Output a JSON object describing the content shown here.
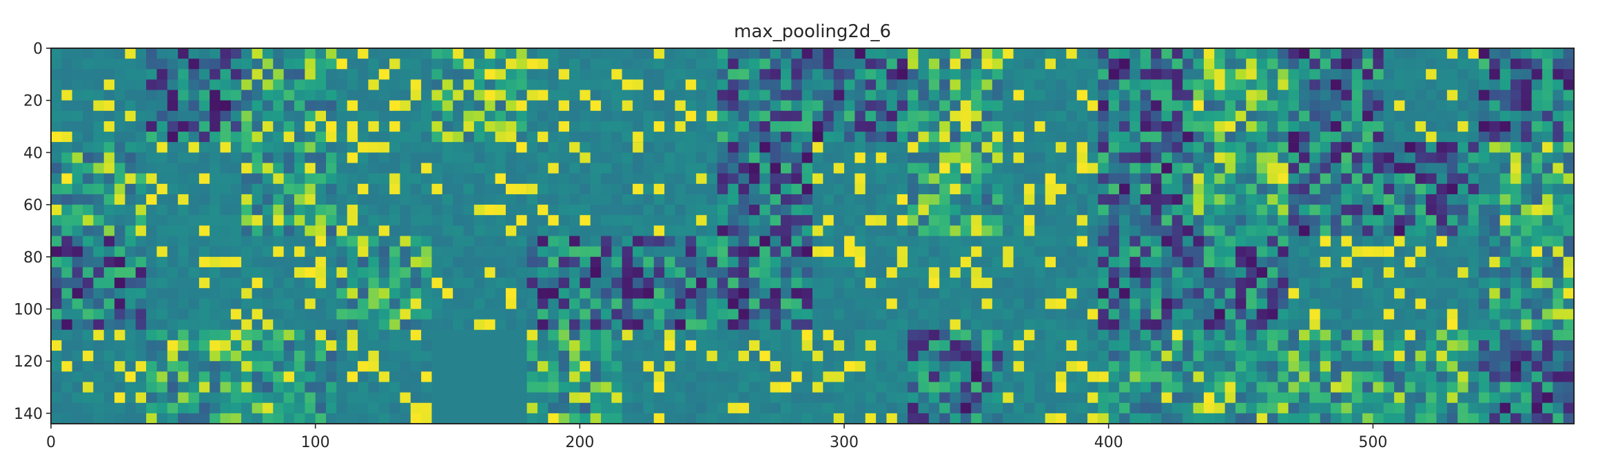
{
  "chart_data": {
    "type": "heatmap",
    "title": "max_pooling2d_6",
    "xlabel": "",
    "ylabel": "",
    "colormap": "viridis",
    "grid": false,
    "x_range": [
      0,
      576
    ],
    "y_range": [
      0,
      144
    ],
    "y_axis_inverted": true,
    "x_ticks": [
      0,
      100,
      200,
      300,
      400,
      500
    ],
    "x_tick_labels": [
      "0",
      "100",
      "200",
      "300",
      "400",
      "500"
    ],
    "y_ticks": [
      0,
      20,
      40,
      60,
      80,
      100,
      120,
      140
    ],
    "y_tick_labels": [
      "0",
      "20",
      "40",
      "60",
      "80",
      "100",
      "120",
      "140"
    ],
    "grid_layout": {
      "rows": 4,
      "cols": 16,
      "tile_size": 36,
      "tiles_shown": 64
    },
    "tile_style": "mean",
    "tile_styles": [
      "sparse",
      "dark",
      "mid",
      "sparse",
      "bright",
      "sparse",
      "sparse",
      "dark",
      "dark",
      "mid",
      "sparse",
      "dark",
      "mid",
      "dark",
      "sparse",
      "dark",
      "mid",
      "sparse",
      "mid",
      "sparse",
      "sparse",
      "sparse",
      "sparse",
      "dark",
      "sparse",
      "mid",
      "sparse",
      "dark",
      "mid",
      "dark",
      "dark",
      "mid",
      "dark",
      "sparse",
      "sparse",
      "mid",
      "sparse",
      "dark",
      "dark",
      "dark",
      "sparse",
      "sparse",
      "sparse",
      "dark",
      "dark",
      "sparse",
      "sparse",
      "mid",
      "sparse",
      "mid",
      "mid",
      "sparse",
      "flat",
      "mid",
      "sparse",
      "sparse",
      "sparse",
      "dark",
      "sparse",
      "mid",
      "mid",
      "mid",
      "mid",
      "dark"
    ]
  },
  "colors": {
    "viridis_dark": "#3b528b",
    "viridis_mid": "#21908d",
    "viridis_light": "#5ec962",
    "viridis_bright": "#fde725",
    "axis": "#262626"
  }
}
